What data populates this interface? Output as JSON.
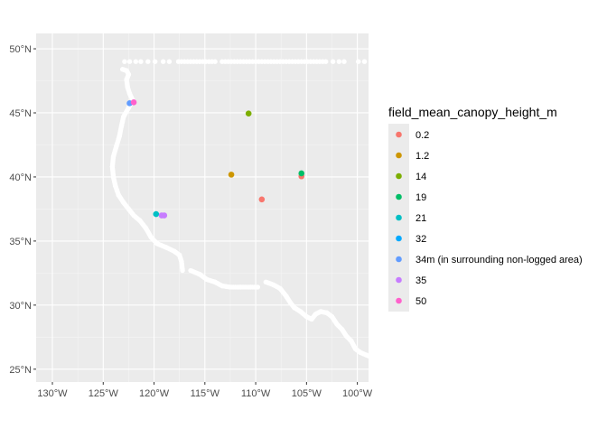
{
  "chart_data": {
    "type": "scatter",
    "x_ticks": [
      {
        "value": -130,
        "label": "130°W"
      },
      {
        "value": -125,
        "label": "125°W"
      },
      {
        "value": -120,
        "label": "120°W"
      },
      {
        "value": -115,
        "label": "115°W"
      },
      {
        "value": -110,
        "label": "110°W"
      },
      {
        "value": -105,
        "label": "105°W"
      },
      {
        "value": -100,
        "label": "100°W"
      }
    ],
    "y_ticks": [
      {
        "value": 25,
        "label": "25°N"
      },
      {
        "value": 30,
        "label": "30°N"
      },
      {
        "value": 35,
        "label": "35°N"
      },
      {
        "value": 40,
        "label": "40°N"
      },
      {
        "value": 45,
        "label": "45°N"
      },
      {
        "value": 50,
        "label": "50°N"
      }
    ],
    "xlim": [
      -131.6,
      -98.9
    ],
    "ylim": [
      24.0,
      51.2
    ],
    "grid": true,
    "legend_position": "right",
    "legend": {
      "title": "field_mean_canopy_height_m",
      "entries": [
        {
          "label": "0.2",
          "color": "#F8766D"
        },
        {
          "label": "1.2",
          "color": "#CD9600"
        },
        {
          "label": "14",
          "color": "#7CAE00"
        },
        {
          "label": "19",
          "color": "#00BE67"
        },
        {
          "label": "21",
          "color": "#00BFC4"
        },
        {
          "label": "32",
          "color": "#00A9FF"
        },
        {
          "label": "34m (in surrounding non-logged area)",
          "color": "#619CFF"
        },
        {
          "label": "35",
          "color": "#C77CFF"
        },
        {
          "label": "50",
          "color": "#FF61CC"
        }
      ]
    },
    "points": [
      {
        "lon": -122.4,
        "lat": 45.75,
        "category": "34m (in surrounding non-logged area)"
      },
      {
        "lon": -122.0,
        "lat": 45.82,
        "category": "50"
      },
      {
        "lon": -110.7,
        "lat": 44.95,
        "category": "14"
      },
      {
        "lon": -112.4,
        "lat": 40.18,
        "category": "1.2"
      },
      {
        "lon": -105.5,
        "lat": 40.05,
        "category": "0.2"
      },
      {
        "lon": -105.5,
        "lat": 40.28,
        "category": "19"
      },
      {
        "lon": -109.4,
        "lat": 38.25,
        "category": "0.2"
      },
      {
        "lon": -119.8,
        "lat": 37.1,
        "category": "21"
      },
      {
        "lon": -119.25,
        "lat": 37.0,
        "category": "35"
      },
      {
        "lon": -119.0,
        "lat": 37.0,
        "category": "35"
      }
    ],
    "coverage_track": {
      "color": "#ffffff",
      "top_row": {
        "lat": 49.0,
        "lons": [
          -122.9,
          -122.4,
          -121.8,
          -121.3,
          -120.6,
          -119.9,
          -119.1,
          -118.5,
          -117.6,
          -117.3,
          -117.0,
          -116.7,
          -116.4,
          -116.1,
          -115.8,
          -115.5,
          -115.2,
          -114.9,
          -114.6,
          -114.3,
          -114.0,
          -113.3,
          -113.0,
          -112.7,
          -112.4,
          -112.1,
          -111.8,
          -111.5,
          -111.2,
          -110.9,
          -110.6,
          -110.3,
          -110.0,
          -109.7,
          -109.4,
          -109.1,
          -108.8,
          -108.5,
          -108.2,
          -107.9,
          -107.6,
          -107.3,
          -107.0,
          -106.7,
          -106.4,
          -106.1,
          -105.8,
          -105.5,
          -105.2,
          -104.9,
          -104.6,
          -104.3,
          -104.0,
          -103.7,
          -103.4,
          -103.1,
          -102.4,
          -101.8,
          -101.3,
          -99.9,
          -99.3
        ]
      },
      "paths": [
        [
          [
            -123.1,
            48.4
          ],
          [
            -122.7,
            48.3
          ],
          [
            -122.5,
            48.0
          ],
          [
            -122.7,
            47.6
          ],
          [
            -122.6,
            47.0
          ],
          [
            -122.4,
            46.5
          ],
          [
            -122.1,
            46.0
          ],
          [
            -122.5,
            45.4
          ],
          [
            -123.0,
            44.7
          ],
          [
            -123.2,
            44.0
          ],
          [
            -123.4,
            43.2
          ],
          [
            -123.7,
            42.4
          ],
          [
            -124.0,
            41.6
          ],
          [
            -124.1,
            40.8
          ],
          [
            -124.0,
            40.0
          ],
          [
            -123.8,
            39.3
          ],
          [
            -123.5,
            38.6
          ],
          [
            -123.0,
            38.0
          ],
          [
            -122.5,
            37.5
          ],
          [
            -122.0,
            37.0
          ],
          [
            -121.4,
            36.6
          ],
          [
            -120.8,
            36.0
          ],
          [
            -120.3,
            35.3
          ],
          [
            -119.7,
            34.8
          ],
          [
            -118.8,
            34.5
          ],
          [
            -118.0,
            34.2
          ],
          [
            -117.5,
            33.9
          ],
          [
            -117.3,
            33.4
          ],
          [
            -117.2,
            32.7
          ]
        ],
        [
          [
            -116.4,
            32.7
          ],
          [
            -115.5,
            32.4
          ],
          [
            -114.8,
            32.0
          ],
          [
            -114.0,
            31.8
          ],
          [
            -113.3,
            31.5
          ],
          [
            -112.5,
            31.4
          ],
          [
            -111.5,
            31.4
          ],
          [
            -110.5,
            31.4
          ],
          [
            -109.8,
            31.4
          ]
        ],
        [
          [
            -109.0,
            31.8
          ],
          [
            -108.3,
            31.6
          ],
          [
            -107.6,
            31.3
          ],
          [
            -107.0,
            30.7
          ],
          [
            -106.6,
            30.2
          ],
          [
            -106.2,
            29.8
          ],
          [
            -105.6,
            29.5
          ],
          [
            -105.0,
            29.1
          ],
          [
            -104.5,
            28.9
          ],
          [
            -104.1,
            29.3
          ],
          [
            -103.6,
            29.5
          ],
          [
            -103.0,
            29.4
          ],
          [
            -102.5,
            29.1
          ],
          [
            -102.0,
            28.5
          ],
          [
            -101.5,
            28.1
          ],
          [
            -101.1,
            27.6
          ],
          [
            -100.6,
            27.2
          ],
          [
            -100.2,
            26.6
          ],
          [
            -99.7,
            26.3
          ],
          [
            -99.1,
            26.1
          ],
          [
            -98.8,
            26.0
          ]
        ]
      ]
    }
  }
}
